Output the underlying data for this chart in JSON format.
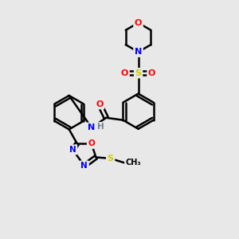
{
  "background_color": "#e8e8e8",
  "atom_colors": {
    "C": "#000000",
    "N": "#0000ff",
    "O": "#ff0000",
    "S": "#cccc00",
    "H": "#708090"
  },
  "bond_color": "#000000",
  "bond_width": 1.8,
  "figsize": [
    3.0,
    3.0
  ],
  "dpi": 100
}
